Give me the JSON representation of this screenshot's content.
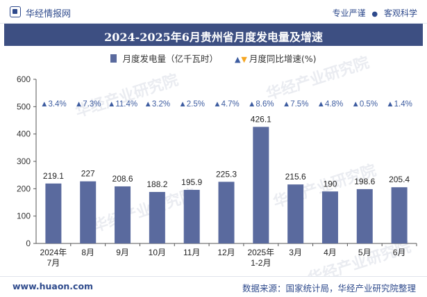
{
  "header": {
    "brand": "华经情报网",
    "tags": [
      "专业严谨",
      "客观科学"
    ]
  },
  "title": "2024-2025年6月贵州省月度发电量及增速",
  "legend": {
    "bar_label": "月度发电量（亿千瓦时）",
    "growth_label": "月度同比增速(%)"
  },
  "chart_data": {
    "type": "bar",
    "title": "2024-2025年6月贵州省月度发电量及增速",
    "categories": [
      "2024年\n7月",
      "8月",
      "9月",
      "10月",
      "11月",
      "12月",
      "2025年\n1-2月",
      "3月",
      "4月",
      "5月",
      "6月"
    ],
    "series": [
      {
        "name": "月度发电量（亿千瓦时）",
        "values": [
          219.1,
          227,
          208.6,
          188.2,
          195.9,
          225.3,
          426.1,
          215.6,
          190,
          198.6,
          205.4
        ],
        "color": "#5a6a9e"
      },
      {
        "name": "月度同比增速(%)",
        "values": [
          3.4,
          7.3,
          11.4,
          3.2,
          2.5,
          4.7,
          8.6,
          7.5,
          4.8,
          0.5,
          1.4
        ],
        "labels": [
          "▲3.4%",
          "▲7.3%",
          "▲11.4%",
          "▲3.2%",
          "▲2.5%",
          "▲4.7%",
          "▲8.6%",
          "▲7.5%",
          "▲4.8%",
          "▲0.5%",
          "▲1.4%"
        ],
        "color": "#3d5ca0"
      }
    ],
    "ylim": [
      0,
      600
    ],
    "yticks": [
      0,
      100,
      200,
      300,
      400,
      500,
      600
    ],
    "grid": false,
    "legend_position": "top-center"
  },
  "watermark": "华经产业研究院",
  "footer": {
    "site": "www.huaon.com",
    "source": "数据来源：国家统计局，华经产业研究院整理"
  },
  "colors": {
    "title_bar": "#3d4f82",
    "bar": "#5a6a9e",
    "growth_up": "#3d5ca0",
    "growth_down": "#f5a623",
    "brand": "#2e4a8c"
  }
}
